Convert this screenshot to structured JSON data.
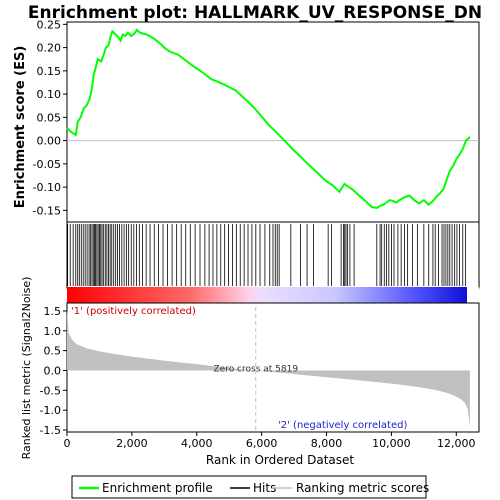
{
  "chart_data": {
    "type": "line",
    "title": "Enrichment plot: HALLMARK_UV_RESPONSE_DN",
    "top_panel": {
      "ylabel": "Enrichment score (ES)",
      "ylim": [
        -0.175,
        0.255
      ],
      "yticks": [
        -0.15,
        -0.1,
        -0.05,
        0.0,
        0.05,
        0.1,
        0.15,
        0.2,
        0.25
      ],
      "ytick_labels": [
        "-0.15",
        "-0.10",
        "-0.05",
        "0.00",
        "0.05",
        "0.10",
        "0.15",
        "0.20",
        "0.25"
      ],
      "grid": false,
      "series": [
        {
          "name": "Enrichment profile",
          "color": "#00ff00",
          "x": [
            0,
            140,
            270,
            330,
            420,
            520,
            600,
            700,
            760,
            820,
            880,
            950,
            1050,
            1130,
            1200,
            1280,
            1330,
            1400,
            1500,
            1580,
            1650,
            1720,
            1800,
            1880,
            1980,
            2080,
            2150,
            2250,
            2350,
            2450,
            2550,
            2700,
            2850,
            3000,
            3150,
            3300,
            3420,
            3550,
            3700,
            3850,
            4000,
            4150,
            4300,
            4450,
            4600,
            4800,
            5000,
            5200,
            5400,
            5600,
            5800,
            6000,
            6200,
            6450,
            6700,
            6950,
            7200,
            7450,
            7700,
            7950,
            8200,
            8400,
            8550,
            8650,
            8800,
            9000,
            9200,
            9400,
            9550,
            9650,
            9750,
            9850,
            9950,
            10050,
            10150,
            10250,
            10400,
            10550,
            10700,
            10850,
            11000,
            11150,
            11280,
            11400,
            11500,
            11600,
            11700,
            11800,
            11900,
            12000,
            12100,
            12200,
            12300,
            12420
          ],
          "y": [
            0.027,
            0.018,
            0.012,
            0.04,
            0.05,
            0.07,
            0.075,
            0.09,
            0.11,
            0.14,
            0.155,
            0.175,
            0.17,
            0.185,
            0.2,
            0.205,
            0.22,
            0.235,
            0.228,
            0.222,
            0.215,
            0.228,
            0.225,
            0.232,
            0.225,
            0.23,
            0.238,
            0.232,
            0.23,
            0.228,
            0.225,
            0.218,
            0.21,
            0.2,
            0.192,
            0.188,
            0.185,
            0.178,
            0.17,
            0.162,
            0.155,
            0.148,
            0.14,
            0.132,
            0.128,
            0.122,
            0.115,
            0.108,
            0.095,
            0.082,
            0.068,
            0.052,
            0.035,
            0.018,
            0.0,
            -0.018,
            -0.035,
            -0.052,
            -0.068,
            -0.085,
            -0.097,
            -0.11,
            -0.093,
            -0.098,
            -0.105,
            -0.118,
            -0.13,
            -0.143,
            -0.145,
            -0.14,
            -0.138,
            -0.133,
            -0.128,
            -0.13,
            -0.133,
            -0.128,
            -0.122,
            -0.118,
            -0.128,
            -0.135,
            -0.128,
            -0.138,
            -0.13,
            -0.12,
            -0.113,
            -0.105,
            -0.085,
            -0.065,
            -0.055,
            -0.04,
            -0.03,
            -0.018,
            0.0,
            0.008
          ]
        }
      ]
    },
    "hits_panel": {
      "legend_name": "Hits",
      "hit_positions": [
        20,
        100,
        190,
        270,
        330,
        380,
        440,
        500,
        560,
        620,
        680,
        720,
        770,
        810,
        850,
        880,
        920,
        960,
        1000,
        1040,
        1080,
        1130,
        1180,
        1230,
        1280,
        1330,
        1380,
        1440,
        1500,
        1560,
        1620,
        1690,
        1760,
        1830,
        1900,
        1980,
        2060,
        2140,
        2230,
        2330,
        2440,
        2560,
        2690,
        2820,
        2960,
        3100,
        3240,
        3380,
        3520,
        3660,
        3800,
        3950,
        4100,
        4250,
        4380,
        4500,
        4620,
        4740,
        4860,
        4980,
        5100,
        5220,
        5340,
        5460,
        5580,
        5700,
        5820,
        5950,
        6100,
        6250,
        6350,
        6420,
        6480,
        6540,
        6900,
        7200,
        7400,
        7600,
        8050,
        8150,
        8450,
        8520,
        8560,
        8600,
        8650,
        8720,
        8850,
        9550,
        9650,
        9700,
        9780,
        9850,
        9920,
        10000,
        10080,
        10200,
        10300,
        10400,
        10500,
        10650,
        10800,
        11000,
        11150,
        11280,
        11350,
        11450,
        11560,
        11620,
        11680,
        11740,
        11800,
        11870,
        11950,
        12020,
        12100,
        12200,
        12280
      ]
    },
    "rank_panel": {
      "ylabel": "Ranked list metric (Signal2Noise)",
      "xlabel": "Rank in Ordered Dataset",
      "ylim": [
        -1.55,
        1.7
      ],
      "yticks": [
        -1.5,
        -1.0,
        -0.5,
        0.0,
        0.5,
        1.0,
        1.5
      ],
      "ytick_labels": [
        "-1.5",
        "-1.0",
        "-0.5",
        "0.0",
        "0.5",
        "1.0",
        "1.5"
      ],
      "xlim": [
        0,
        12700
      ],
      "xticks": [
        0,
        2000,
        4000,
        6000,
        8000,
        10000,
        12000
      ],
      "xtick_labels": [
        "0",
        "2,000",
        "4,000",
        "6,000",
        "8,000",
        "10,000",
        "12,000"
      ],
      "zero_cross": 5819,
      "zero_cross_label": "Zero cross at 5819",
      "pos_label": "'1' (positively correlated)",
      "neg_label": "'2' (negatively correlated)",
      "total_genes": 12420,
      "metric_x": [
        0,
        50,
        150,
        300,
        600,
        1000,
        1500,
        2000,
        2500,
        3000,
        3500,
        4000,
        4500,
        5000,
        5819,
        6500,
        7000,
        7500,
        8000,
        8500,
        9000,
        9500,
        10000,
        10500,
        11000,
        11400,
        11700,
        11900,
        12100,
        12250,
        12350,
        12420
      ],
      "metric_y": [
        1.55,
        0.95,
        0.78,
        0.66,
        0.56,
        0.48,
        0.41,
        0.35,
        0.3,
        0.25,
        0.2,
        0.16,
        0.11,
        0.06,
        0.0,
        -0.05,
        -0.09,
        -0.13,
        -0.17,
        -0.21,
        -0.25,
        -0.29,
        -0.33,
        -0.38,
        -0.44,
        -0.5,
        -0.56,
        -0.62,
        -0.7,
        -0.8,
        -0.95,
        -1.42
      ]
    },
    "legend": {
      "items": [
        {
          "label": "Enrichment profile",
          "color": "#00ff00"
        },
        {
          "label": "Hits",
          "color": "#000000"
        },
        {
          "label": "Ranking metric scores",
          "color": "#c0c0c0"
        }
      ],
      "placement": "bottom"
    },
    "colors": {
      "profile": "#00ff00",
      "metric_fill": "#c0c0c0",
      "pos_label": "#cc0000",
      "neg_label": "#2020cc",
      "zero_line": "#c0c0c0"
    }
  }
}
